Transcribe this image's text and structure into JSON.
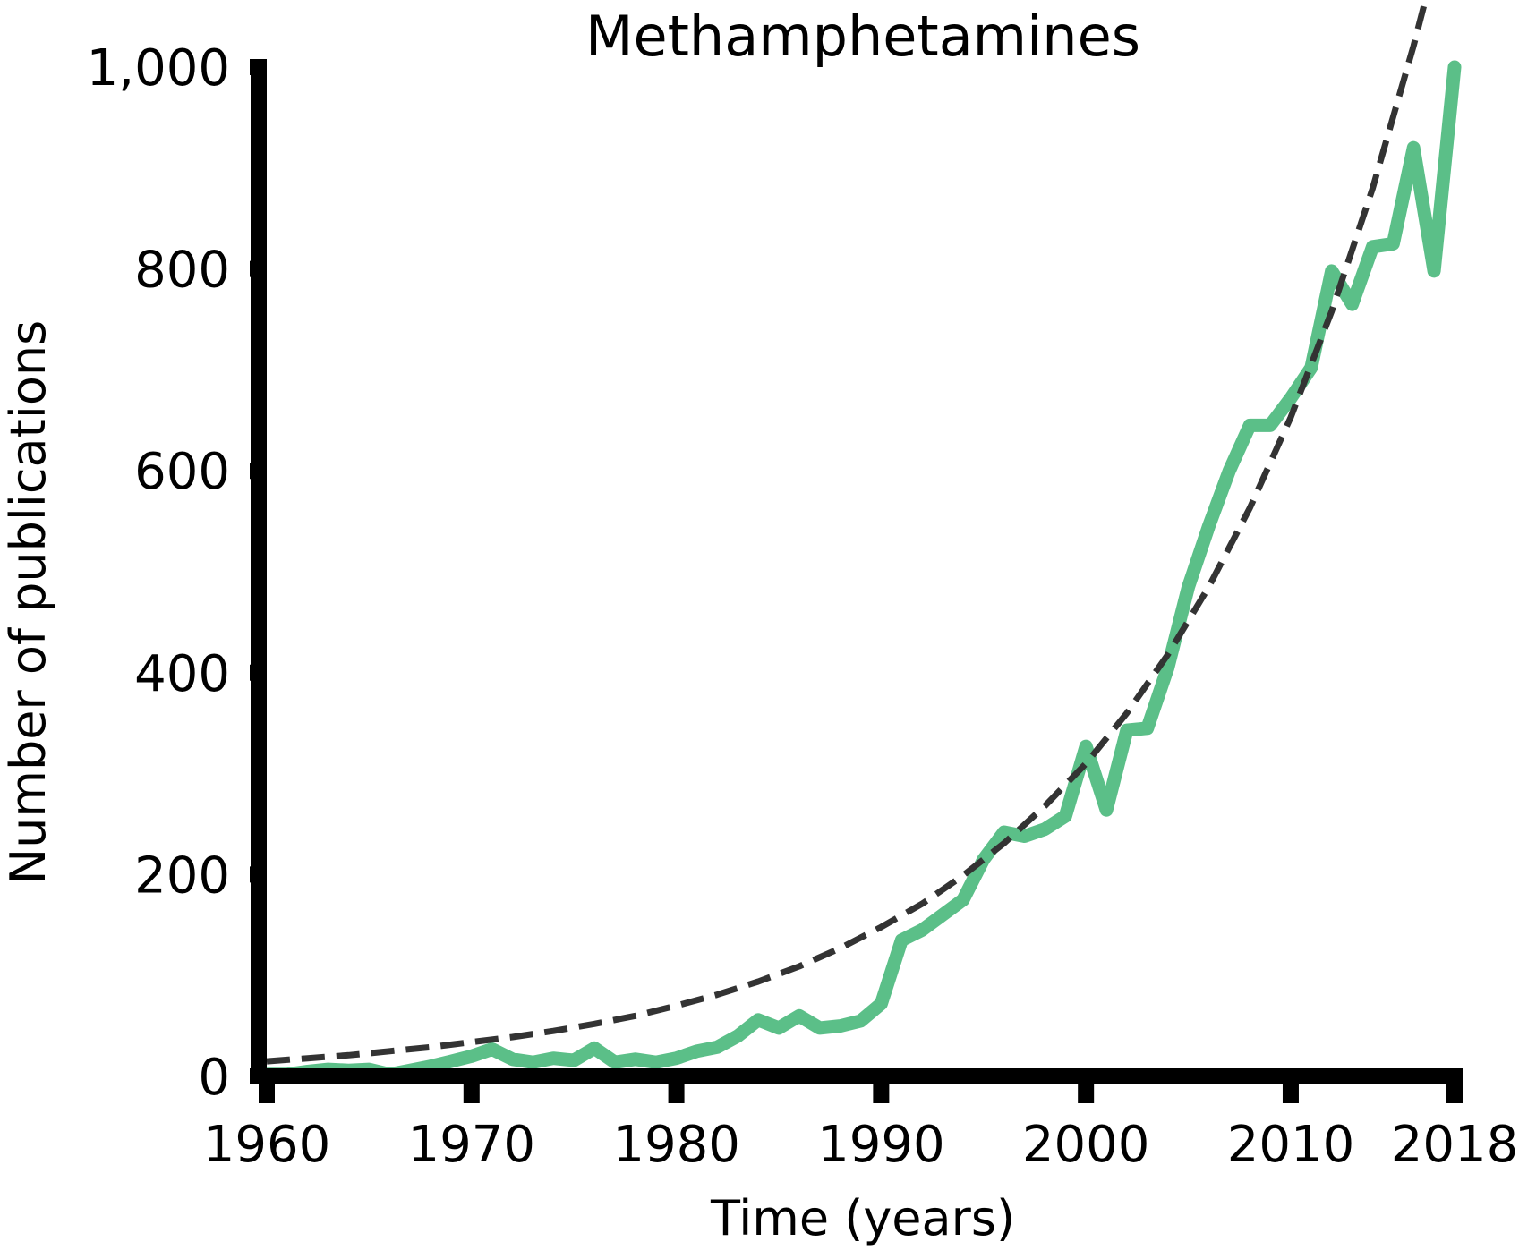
{
  "chart_data": {
    "type": "line",
    "title": "Methamphetamines",
    "xlabel": "Time (years)",
    "ylabel": "Number of publications",
    "xlim": [
      1960,
      2018
    ],
    "ylim": [
      0,
      1000
    ],
    "xticks": [
      1960,
      1970,
      1980,
      1990,
      2000,
      2010,
      2018
    ],
    "yticks": [
      0,
      200,
      400,
      600,
      800,
      1000
    ],
    "xtick_labels": [
      "1960",
      "1970",
      "1980",
      "1990",
      "2000",
      "2010",
      "2018"
    ],
    "ytick_labels": [
      "0",
      "200",
      "400",
      "600",
      "800",
      "1,000"
    ],
    "grid": false,
    "series": [
      {
        "style": "solid",
        "color": "#5bbf88",
        "x": [
          1960,
          1961,
          1962,
          1963,
          1964,
          1965,
          1966,
          1967,
          1968,
          1969,
          1970,
          1971,
          1972,
          1973,
          1974,
          1975,
          1976,
          1977,
          1978,
          1979,
          1980,
          1981,
          1982,
          1983,
          1984,
          1985,
          1986,
          1987,
          1988,
          1989,
          1990,
          1991,
          1992,
          1993,
          1994,
          1995,
          1996,
          1997,
          1998,
          1999,
          2000,
          2001,
          2002,
          2003,
          2004,
          2005,
          2006,
          2007,
          2008,
          2009,
          2010,
          2011,
          2012,
          2013,
          2014,
          2015,
          2016,
          2017,
          2018
        ],
        "y": [
          2,
          2,
          5,
          7,
          6,
          7,
          2,
          6,
          10,
          15,
          20,
          27,
          17,
          14,
          18,
          16,
          28,
          14,
          17,
          14,
          18,
          25,
          29,
          40,
          56,
          48,
          60,
          48,
          50,
          55,
          72,
          135,
          145,
          160,
          175,
          215,
          242,
          238,
          245,
          258,
          327,
          264,
          343,
          345,
          405,
          485,
          545,
          600,
          645,
          645,
          672,
          702,
          798,
          765,
          822,
          825,
          920,
          798,
          1000
        ]
      },
      {
        "style": "dashed",
        "color": "#333333",
        "x": [
          1960,
          1962,
          1964,
          1966,
          1968,
          1970,
          1972,
          1974,
          1976,
          1978,
          1980,
          1982,
          1984,
          1986,
          1988,
          1990,
          1992,
          1994,
          1996,
          1998,
          2000,
          2002,
          2004,
          2006,
          2008,
          2010,
          2012,
          2014,
          2016,
          2017,
          2018
        ],
        "y": [
          15,
          18,
          21,
          25,
          29,
          34,
          39,
          45,
          52,
          60,
          70,
          81,
          94,
          109,
          127,
          148,
          171,
          199,
          231,
          268,
          310,
          360,
          418,
          485,
          563,
          653,
          758,
          880,
          1021,
          1100,
          1185
        ]
      }
    ]
  }
}
